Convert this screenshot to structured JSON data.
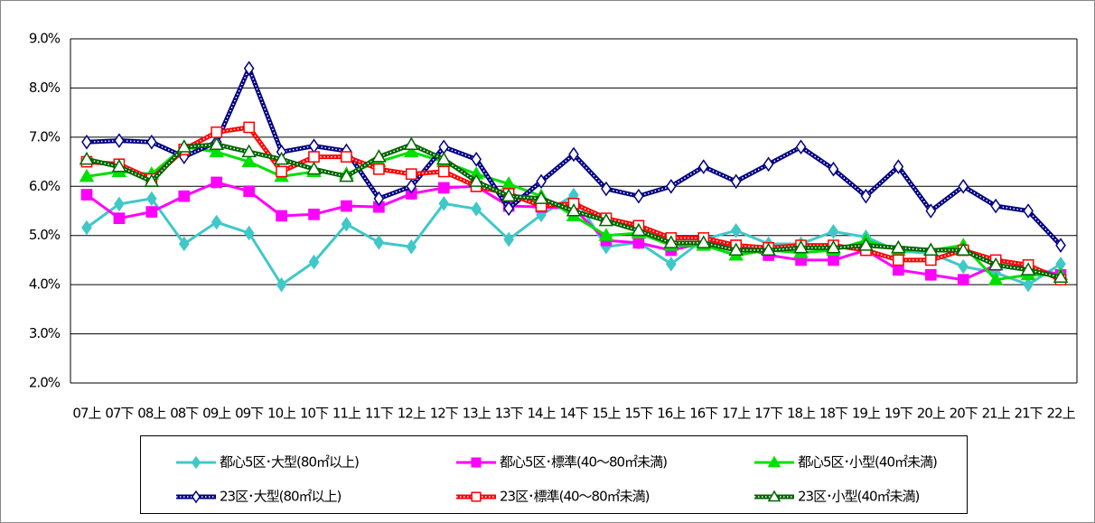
{
  "chart_data": {
    "type": "line",
    "categories": [
      "07上",
      "07下",
      "08上",
      "08下",
      "09上",
      "09下",
      "10上",
      "10下",
      "11上",
      "11下",
      "12上",
      "12下",
      "13上",
      "13下",
      "14上",
      "14下",
      "15上",
      "15下",
      "16上",
      "16下",
      "17上",
      "17下",
      "18上",
      "18下",
      "19上",
      "19下",
      "20上",
      "20下",
      "21上",
      "21下",
      "22上"
    ],
    "ylim": [
      2,
      9
    ],
    "yticks": [
      {
        "value": 2,
        "label": "2.0%"
      },
      {
        "value": 3,
        "label": "3.0%"
      },
      {
        "value": 4,
        "label": "4.0%"
      },
      {
        "value": 5,
        "label": "5.0%"
      },
      {
        "value": 6,
        "label": "6.0%"
      },
      {
        "value": 7,
        "label": "7.0%"
      },
      {
        "value": 8,
        "label": "8.0%"
      },
      {
        "value": 9,
        "label": "9.0%"
      }
    ],
    "grid": true,
    "legend_position": "bottom",
    "series": [
      {
        "name": "都心5区･大型(80㎡以上)",
        "color": "#40c8c8",
        "marker": "diamond",
        "filled": true,
        "dotted": false,
        "values": [
          5.16,
          5.64,
          5.75,
          4.83,
          5.27,
          5.05,
          4.0,
          4.46,
          5.23,
          4.86,
          4.77,
          5.65,
          5.54,
          4.92,
          5.42,
          5.82,
          4.77,
          4.86,
          4.42,
          4.92,
          5.1,
          4.83,
          4.83,
          5.08,
          4.97,
          4.68,
          4.64,
          4.37,
          4.24,
          4.0,
          4.42
        ]
      },
      {
        "name": "都心5区･標準(40～80㎡未満)",
        "color": "#ff00ff",
        "marker": "square",
        "filled": true,
        "dotted": false,
        "values": [
          5.83,
          5.35,
          5.48,
          5.8,
          6.08,
          5.9,
          5.4,
          5.43,
          5.6,
          5.58,
          5.85,
          5.97,
          6.0,
          5.6,
          5.58,
          5.55,
          4.9,
          4.85,
          4.7,
          4.85,
          4.8,
          4.6,
          4.5,
          4.5,
          4.7,
          4.3,
          4.2,
          4.1,
          4.4,
          4.35,
          4.2
        ]
      },
      {
        "name": "都心5区･小型(40㎡未満)",
        "color": "#00e000",
        "marker": "triangle",
        "filled": true,
        "dotted": false,
        "values": [
          6.2,
          6.3,
          6.25,
          6.8,
          6.7,
          6.5,
          6.2,
          6.3,
          6.25,
          6.5,
          6.7,
          6.5,
          6.25,
          6.05,
          5.8,
          5.4,
          5.0,
          5.05,
          4.8,
          4.8,
          4.6,
          4.7,
          4.65,
          4.7,
          4.9,
          4.7,
          4.7,
          4.8,
          4.1,
          4.2,
          4.2
        ]
      },
      {
        "name": "23区･大型(80㎡以上)",
        "color": "#000080",
        "marker": "diamond",
        "filled": false,
        "dotted": true,
        "values": [
          6.9,
          6.93,
          6.9,
          6.6,
          6.9,
          8.4,
          6.7,
          6.82,
          6.72,
          5.75,
          6.0,
          6.8,
          6.55,
          5.55,
          6.1,
          6.65,
          5.95,
          5.8,
          6.0,
          6.4,
          6.1,
          6.45,
          6.8,
          6.35,
          5.8,
          6.4,
          5.5,
          6.0,
          5.6,
          5.5,
          4.8
        ]
      },
      {
        "name": "23区･標準(40～80㎡未満)",
        "color": "#ff0000",
        "marker": "square",
        "filled": false,
        "dotted": true,
        "values": [
          6.5,
          6.45,
          6.15,
          6.75,
          7.1,
          7.2,
          6.3,
          6.6,
          6.6,
          6.35,
          6.25,
          6.3,
          6.0,
          5.85,
          5.6,
          5.65,
          5.35,
          5.2,
          4.95,
          4.95,
          4.8,
          4.75,
          4.8,
          4.8,
          4.7,
          4.5,
          4.5,
          4.7,
          4.5,
          4.4,
          4.1
        ]
      },
      {
        "name": "23区･小型(40㎡未満)",
        "color": "#006400",
        "marker": "triangle",
        "filled": false,
        "dotted": true,
        "values": [
          6.55,
          6.4,
          6.1,
          6.8,
          6.85,
          6.7,
          6.55,
          6.35,
          6.2,
          6.6,
          6.85,
          6.55,
          6.1,
          5.8,
          5.75,
          5.5,
          5.3,
          5.1,
          4.85,
          4.85,
          4.7,
          4.7,
          4.75,
          4.75,
          4.8,
          4.75,
          4.7,
          4.7,
          4.4,
          4.3,
          4.15
        ]
      }
    ]
  }
}
